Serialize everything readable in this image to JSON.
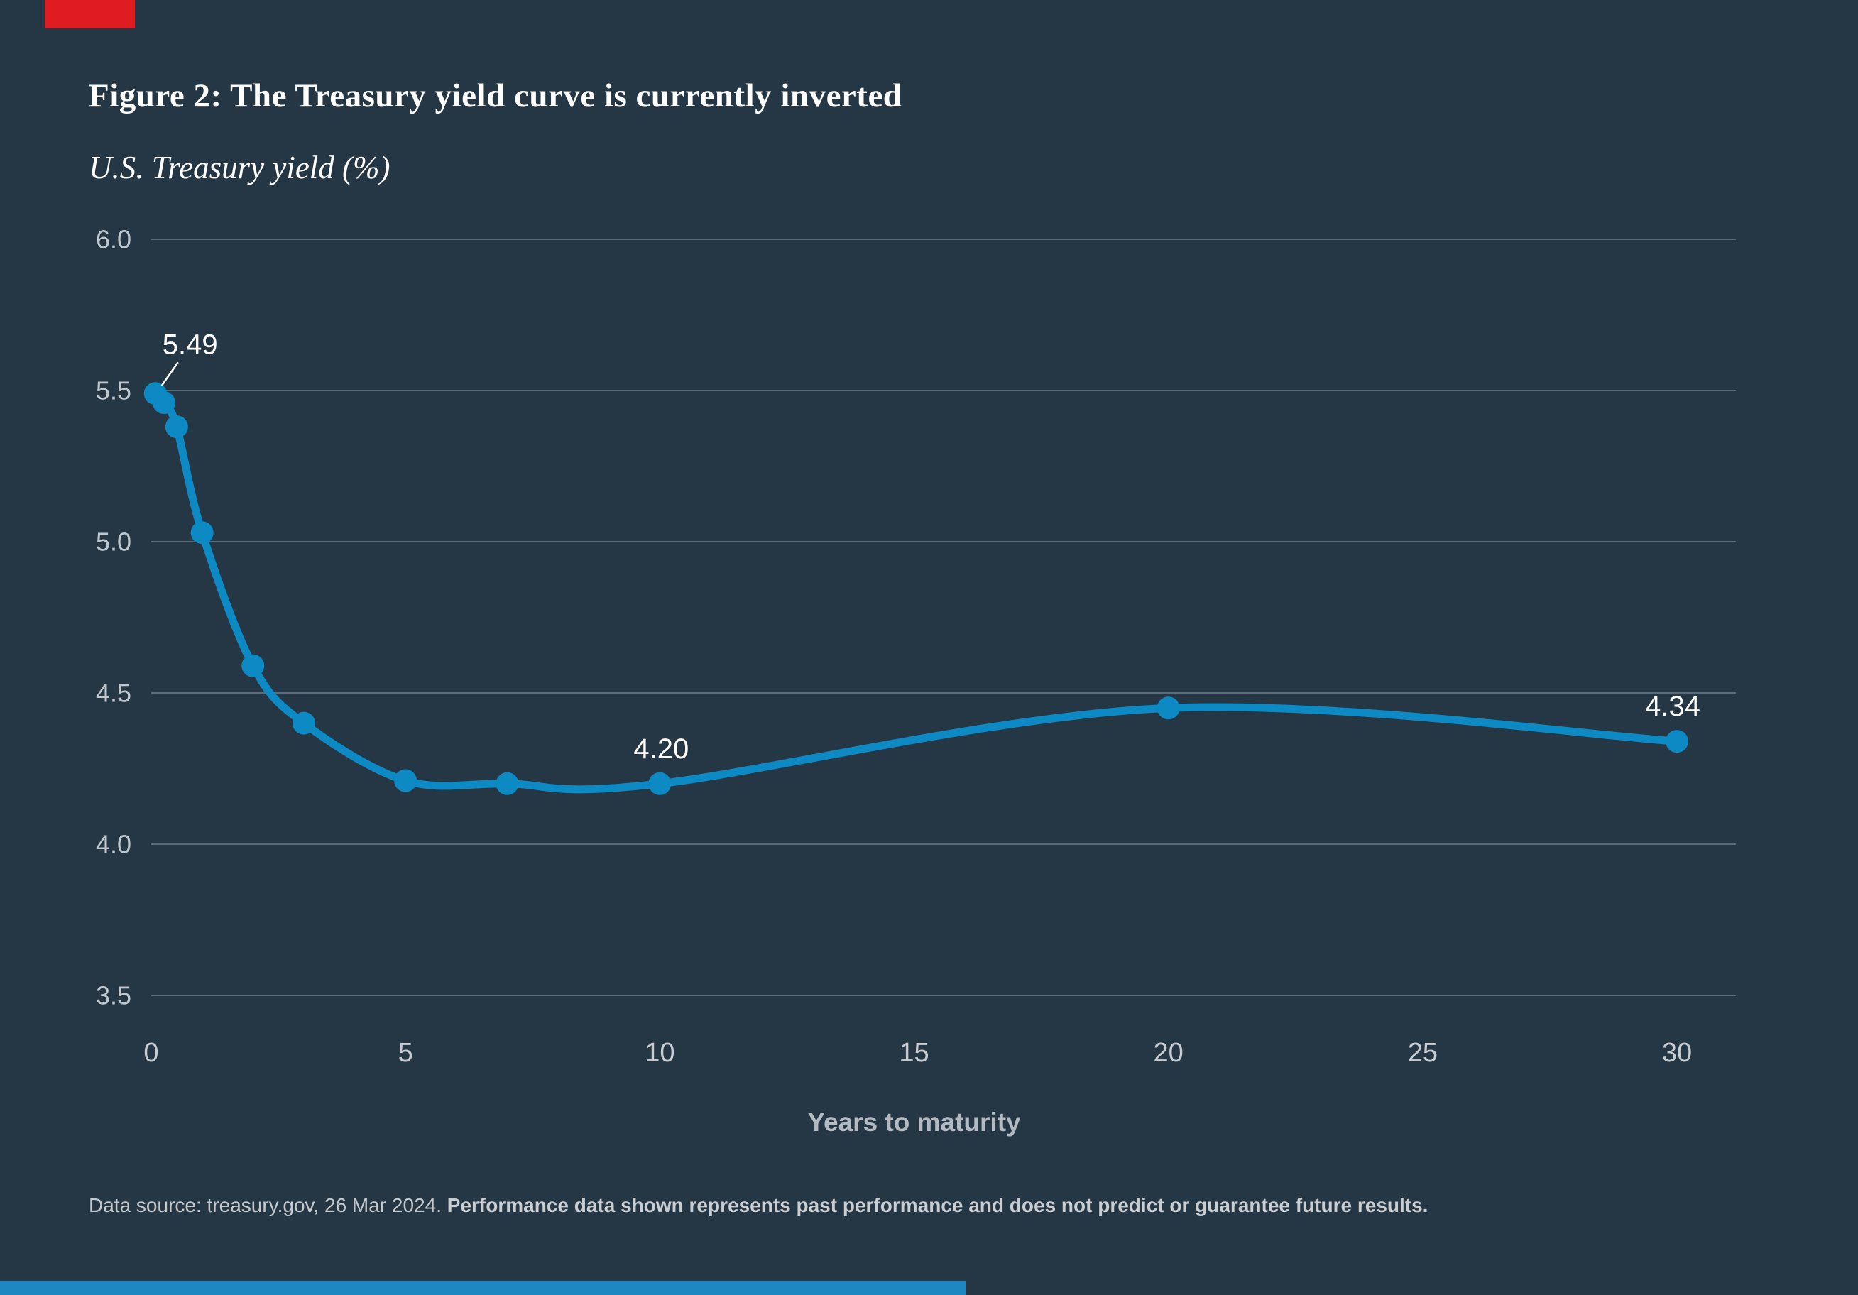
{
  "header": {
    "title": "Figure 2: The Treasury yield curve is currently inverted",
    "subtitle": "U.S. Treasury yield (%)"
  },
  "chart_data": {
    "type": "line",
    "title": "Figure 2: The Treasury yield curve is currently inverted",
    "subtitle": "U.S. Treasury yield (%)",
    "xlabel": "Years to maturity",
    "ylabel": "U.S. Treasury yield (%)",
    "x": [
      0.08,
      0.25,
      0.5,
      1,
      2,
      3,
      5,
      7,
      10,
      20,
      30
    ],
    "series": [
      {
        "name": "U.S. Treasury yield (%)",
        "values": [
          5.49,
          5.46,
          5.38,
          5.03,
          4.59,
          4.4,
          4.21,
          4.2,
          4.2,
          4.45,
          4.34
        ]
      }
    ],
    "xlim": [
      0,
      30
    ],
    "ylim": [
      3.5,
      6.0
    ],
    "xticks": {
      "values": [
        0,
        5,
        10,
        15,
        20,
        25,
        30
      ],
      "labels": [
        "0",
        "5",
        "10",
        "15",
        "20",
        "25",
        "30"
      ]
    },
    "yticks": {
      "values": [
        6.0,
        5.5,
        5.0,
        4.5,
        4.0,
        3.5
      ],
      "labels": [
        "6.0",
        "5.5",
        "5.0",
        "4.5",
        "4.0",
        "3.5"
      ]
    },
    "grid": true,
    "legend": "none",
    "annotations": [
      {
        "x": 0.08,
        "y": 5.49,
        "label": "5.49",
        "callout": true
      },
      {
        "x": 10,
        "y": 4.2,
        "label": "4.20",
        "callout": false
      },
      {
        "x": 30,
        "y": 4.34,
        "label": "4.34",
        "callout": false
      }
    ]
  },
  "footer": {
    "source_regular": "Data source: treasury.gov, 26 Mar 2024. ",
    "source_bold": "Performance data shown represents past performance and does not predict or guarantee future results."
  },
  "colors": {
    "background": "#253745",
    "line": "#0d8ac4",
    "marker": "#0d8ac4",
    "gridline": "#5b6a77",
    "ytick_text": "#c0c7ce",
    "xtick_text": "#c7cdd2",
    "axis_title_text": "#b3bac1",
    "annotation_text": "#ffffff",
    "footer_text": "#c4c9ce",
    "brand_red": "#e11b22",
    "brand_blue": "#1e87c2"
  }
}
